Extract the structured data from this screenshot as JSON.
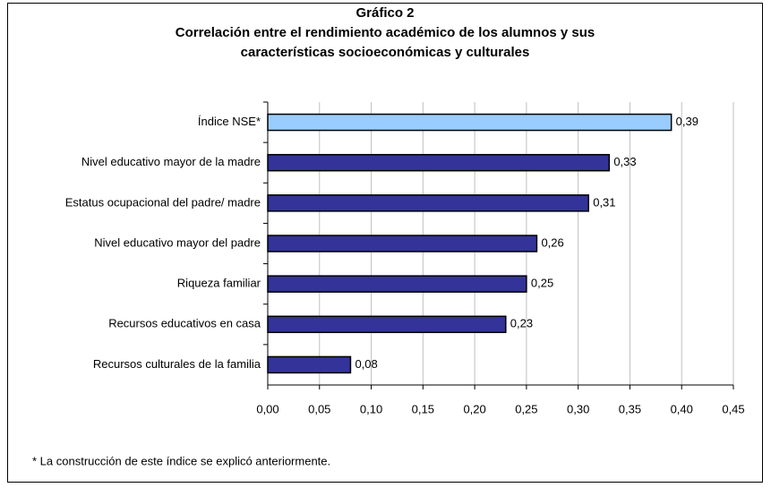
{
  "chart_data": {
    "type": "bar",
    "orientation": "horizontal",
    "title": [
      "Gráfico 2",
      "Correlación entre el rendimiento académico de los alumnos y sus",
      "características socioeconómicas y culturales"
    ],
    "categories": [
      "Índice NSE*",
      "Nivel educativo mayor de la madre",
      "Estatus ocupacional del padre/ madre",
      "Nivel educativo mayor del padre",
      "Riqueza familiar",
      "Recursos educativos en casa",
      "Recursos culturales de la familia"
    ],
    "values": [
      0.39,
      0.33,
      0.31,
      0.26,
      0.25,
      0.23,
      0.08
    ],
    "value_labels": [
      "0,39",
      "0,33",
      "0,31",
      "0,26",
      "0,25",
      "0,23",
      "0,08"
    ],
    "colors": [
      "#99ccff",
      "#333399",
      "#333399",
      "#333399",
      "#333399",
      "#333399",
      "#333399"
    ],
    "xlim": [
      0,
      0.45
    ],
    "xticks": [
      {
        "value": 0,
        "label": "0,00"
      },
      {
        "value": 0.05,
        "label": "0,05"
      },
      {
        "value": 0.1,
        "label": "0,10"
      },
      {
        "value": 0.15,
        "label": "0,15"
      },
      {
        "value": 0.2,
        "label": "0,20"
      },
      {
        "value": 0.25,
        "label": "0,25"
      },
      {
        "value": 0.3,
        "label": "0,30"
      },
      {
        "value": 0.35,
        "label": "0,35"
      },
      {
        "value": 0.4,
        "label": "0,40"
      },
      {
        "value": 0.45,
        "label": "0,45"
      }
    ],
    "grid": true,
    "footnote": "* La construcción de este índice se explicó anteriormente."
  }
}
